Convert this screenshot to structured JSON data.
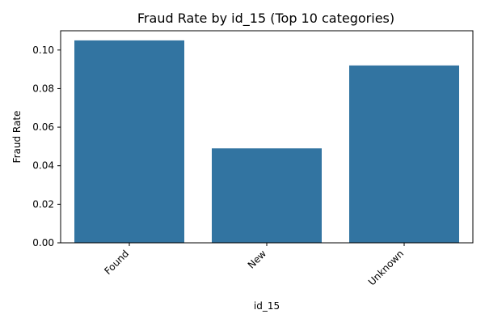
{
  "chart_data": {
    "type": "bar",
    "title": "Fraud Rate by id_15 (Top 10 categories)",
    "xlabel": "id_15",
    "ylabel": "Fraud Rate",
    "categories": [
      "Found",
      "New",
      "Unknown"
    ],
    "values": [
      0.105,
      0.049,
      0.092
    ],
    "ylim": [
      0,
      0.11
    ],
    "yticks": [
      0.0,
      0.02,
      0.04,
      0.06,
      0.08,
      0.1
    ],
    "ytick_labels": [
      "0.00",
      "0.02",
      "0.04",
      "0.06",
      "0.08",
      "0.10"
    ],
    "xtick_rotation_deg": 45,
    "bar_color": "#3274a1",
    "grid": false,
    "legend": "none"
  }
}
